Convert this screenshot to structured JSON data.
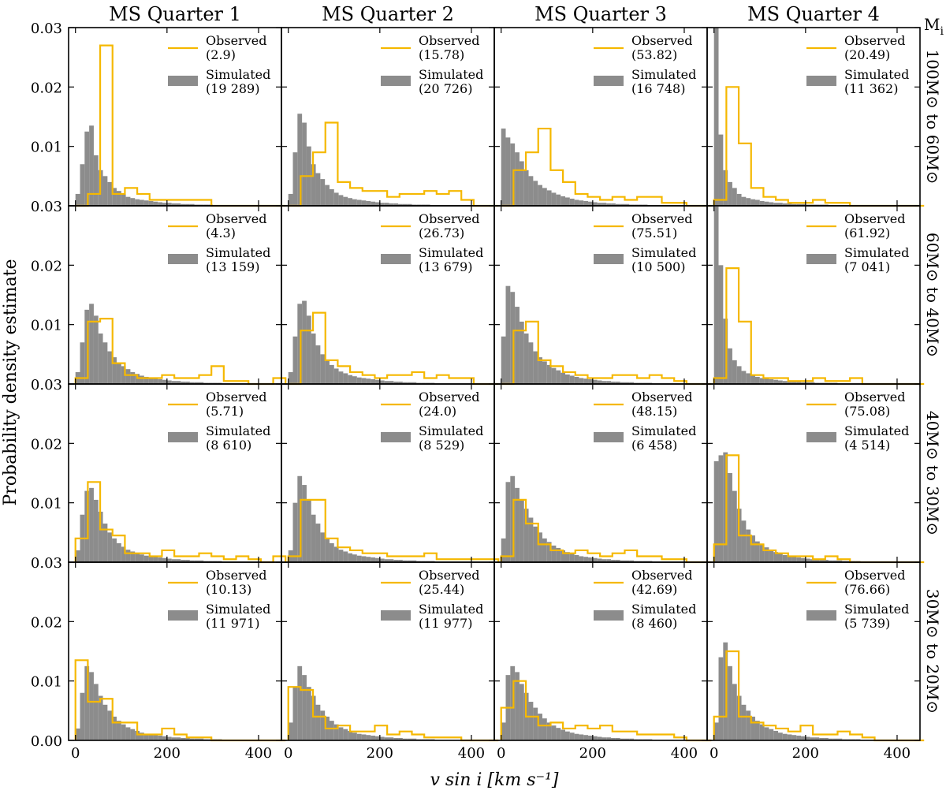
{
  "figure": {
    "ylabel": "Probability density estimate",
    "xlabel": "v sin i [km s⁻¹]",
    "mass_header": "M",
    "mass_header_sub": "i",
    "columns": [
      "MS Quarter 1",
      "MS Quarter 2",
      "MS Quarter 3",
      "MS Quarter 4"
    ],
    "rows": [
      "100M⊙ to 60M⊙",
      "60M⊙ to 40M⊙",
      "40M⊙ to 30M⊙",
      "30M⊙ to 20M⊙"
    ],
    "observed_label": "Observed",
    "simulated_label": "Simulated",
    "colors": {
      "observed": "#f5b800",
      "simulated": "#8c8c8c"
    }
  },
  "chart_data": [
    {
      "type": "bar",
      "row": 0,
      "col": 0,
      "observed_count": "(2.9)",
      "simulated_count": "(19 289)",
      "observed": [
        0,
        0.002,
        0.027,
        0.002,
        0.003,
        0.002,
        0.001,
        0.001,
        0.001,
        0.001,
        0.001,
        0,
        0,
        0,
        0,
        0,
        0
      ],
      "simulated": [
        0.002,
        0.007,
        0.0125,
        0.0135,
        0.0085,
        0.006,
        0.005,
        0.004,
        0.003,
        0.0025,
        0.002,
        0.0015,
        0.0013,
        0.0011,
        0.001,
        0.0009,
        0.0008,
        0.0007,
        0.0006,
        0.0005,
        0.0005,
        0.0004,
        0.0004,
        0.0003,
        0.0003,
        0.0003,
        0.0002,
        0.0002,
        0.0002,
        0.0002,
        0.0001,
        0.0001,
        0.0001,
        0.0001,
        0.0001,
        0.0001,
        0.0001,
        0.0001,
        0.0001,
        0.0001,
        0.0001,
        0.0001,
        0.0001,
        0.0001,
        0.0001
      ]
    },
    {
      "type": "bar",
      "row": 0,
      "col": 1,
      "observed_count": "(15.78)",
      "simulated_count": "(20 726)",
      "observed": [
        0,
        0.005,
        0.009,
        0.014,
        0.004,
        0.003,
        0.0025,
        0.0025,
        0.0015,
        0.002,
        0.002,
        0.0025,
        0.002,
        0.0025,
        0.001,
        0,
        0
      ],
      "simulated": [
        0.002,
        0.009,
        0.0155,
        0.014,
        0.01,
        0.007,
        0.0055,
        0.0045,
        0.0035,
        0.0028,
        0.0022,
        0.0018,
        0.0015,
        0.0013,
        0.0011,
        0.001,
        0.0009,
        0.0008,
        0.0007,
        0.0006,
        0.0005,
        0.0005,
        0.0004,
        0.0004,
        0.0003,
        0.0003,
        0.0003,
        0.0002,
        0.0002,
        0.0002,
        0.0002,
        0.0001,
        0.0001,
        0.0001,
        0.0001,
        0.0001,
        0.0001,
        0.0001,
        0.0001,
        0.0001,
        0.0001,
        0.0001,
        0.0001,
        0.0001,
        0.0001
      ]
    },
    {
      "type": "bar",
      "row": 0,
      "col": 2,
      "observed_count": "(53.82)",
      "simulated_count": "(16 748)",
      "observed": [
        0,
        0.006,
        0.009,
        0.013,
        0.006,
        0.004,
        0.002,
        0.0015,
        0.001,
        0.0015,
        0.001,
        0.0015,
        0.0015,
        0.0005,
        0.0005,
        0,
        0
      ],
      "simulated": [
        0.013,
        0.0115,
        0.0105,
        0.009,
        0.0075,
        0.006,
        0.005,
        0.0042,
        0.0035,
        0.003,
        0.0026,
        0.0022,
        0.0019,
        0.0016,
        0.0014,
        0.0012,
        0.001,
        0.0009,
        0.0008,
        0.0007,
        0.0006,
        0.0005,
        0.0005,
        0.0004,
        0.0004,
        0.0003,
        0.0003,
        0.0003,
        0.0002,
        0.0002,
        0.0002,
        0.0002,
        0.0001,
        0.0001,
        0.0001,
        0.0001,
        0.0001,
        0.0001,
        0.0001,
        0.0001,
        0.0001,
        0.0001,
        0.0001,
        0.0001,
        0.0001
      ]
    },
    {
      "type": "bar",
      "row": 0,
      "col": 3,
      "observed_count": "(20.49)",
      "simulated_count": "(11 362)",
      "observed": [
        0.001,
        0.02,
        0.0105,
        0.003,
        0.0015,
        0.001,
        0.0005,
        0.0005,
        0.001,
        0.0005,
        0.0005,
        0,
        0,
        0,
        0,
        0,
        0
      ],
      "simulated": [
        0.03,
        0.012,
        0.006,
        0.004,
        0.003,
        0.002,
        0.0015,
        0.0013,
        0.0011,
        0.001,
        0.0008,
        0.0007,
        0.0006,
        0.0005,
        0.0005,
        0.0004,
        0.0004,
        0.0003,
        0.0003,
        0.0003,
        0.0002,
        0.0002,
        0.0002,
        0.0002,
        0.0002,
        0.0001,
        0.0001,
        0.0001,
        0.0001,
        0.0001,
        0.0001,
        0.0001,
        0.0001,
        0.0001,
        0.0001,
        0.0001,
        0.0001,
        0.0001,
        0.0001,
        0.0001,
        0.0001,
        0.0001,
        0.0001,
        0.0001,
        0.0001
      ]
    },
    {
      "type": "bar",
      "row": 1,
      "col": 0,
      "observed_count": "(4.3)",
      "simulated_count": "(13 159)",
      "observed": [
        0.001,
        0.0105,
        0.011,
        0.0035,
        0.0015,
        0.001,
        0.001,
        0.0015,
        0.001,
        0.001,
        0.0015,
        0.003,
        0.0005,
        0.0005,
        0,
        0,
        0.001
      ],
      "simulated": [
        0.002,
        0.007,
        0.0125,
        0.0135,
        0.0115,
        0.0085,
        0.007,
        0.0055,
        0.0045,
        0.0035,
        0.003,
        0.0025,
        0.002,
        0.0017,
        0.0014,
        0.0012,
        0.001,
        0.0009,
        0.0008,
        0.0007,
        0.0006,
        0.0005,
        0.0005,
        0.0004,
        0.0004,
        0.0003,
        0.0003,
        0.0003,
        0.0002,
        0.0002,
        0.0002,
        0.0002,
        0.0001,
        0.0001,
        0.0001,
        0.0001,
        0.0001,
        0.0001,
        0.0001,
        0.0001,
        0.0001,
        0.0001,
        0.0001,
        0.0001,
        0.0001
      ]
    },
    {
      "type": "bar",
      "row": 1,
      "col": 1,
      "observed_count": "(26.73)",
      "simulated_count": "(13 679)",
      "observed": [
        0,
        0.009,
        0.012,
        0.004,
        0.003,
        0.002,
        0.0015,
        0.001,
        0.0015,
        0.0015,
        0.002,
        0.001,
        0.0015,
        0.001,
        0.001,
        0,
        0
      ],
      "simulated": [
        0.002,
        0.008,
        0.0135,
        0.014,
        0.0115,
        0.0085,
        0.0065,
        0.005,
        0.004,
        0.0032,
        0.0026,
        0.0021,
        0.0018,
        0.0015,
        0.0013,
        0.0011,
        0.001,
        0.0009,
        0.0008,
        0.0007,
        0.0006,
        0.0005,
        0.0005,
        0.0004,
        0.0004,
        0.0003,
        0.0003,
        0.0003,
        0.0002,
        0.0002,
        0.0002,
        0.0002,
        0.0001,
        0.0001,
        0.0001,
        0.0001,
        0.0001,
        0.0001,
        0.0001,
        0.0001,
        0.0001,
        0.0001,
        0.0001,
        0.0001,
        0.0001
      ]
    },
    {
      "type": "bar",
      "row": 1,
      "col": 2,
      "observed_count": "(75.51)",
      "simulated_count": "(10 500)",
      "observed": [
        0,
        0.009,
        0.0105,
        0.004,
        0.003,
        0.002,
        0.0015,
        0.001,
        0.001,
        0.0015,
        0.0015,
        0.001,
        0.0015,
        0.001,
        0.0005,
        0,
        0
      ],
      "simulated": [
        0.008,
        0.0165,
        0.0155,
        0.013,
        0.0105,
        0.0085,
        0.007,
        0.0055,
        0.0045,
        0.0038,
        0.0032,
        0.0027,
        0.0023,
        0.0019,
        0.0016,
        0.0014,
        0.0012,
        0.001,
        0.0009,
        0.0008,
        0.0007,
        0.0006,
        0.0005,
        0.0005,
        0.0004,
        0.0004,
        0.0003,
        0.0003,
        0.0003,
        0.0002,
        0.0002,
        0.0002,
        0.0002,
        0.0001,
        0.0001,
        0.0001,
        0.0001,
        0.0001,
        0.0001,
        0.0001,
        0.0001,
        0.0001,
        0.0001,
        0.0001,
        0.0001
      ]
    },
    {
      "type": "bar",
      "row": 1,
      "col": 3,
      "observed_count": "(61.92)",
      "simulated_count": "(7 041)",
      "observed": [
        0.001,
        0.0195,
        0.0105,
        0.0015,
        0.001,
        0.001,
        0.0005,
        0.0005,
        0.001,
        0.0005,
        0.0005,
        0.001,
        0,
        0,
        0,
        0,
        0
      ],
      "simulated": [
        0.03,
        0.02,
        0.011,
        0.006,
        0.004,
        0.003,
        0.0022,
        0.0018,
        0.0014,
        0.0012,
        0.001,
        0.0009,
        0.0008,
        0.0007,
        0.0006,
        0.0005,
        0.0005,
        0.0004,
        0.0004,
        0.0003,
        0.0003,
        0.0003,
        0.0002,
        0.0002,
        0.0002,
        0.0002,
        0.0002,
        0.0001,
        0.0001,
        0.0001,
        0.0001,
        0.0001,
        0.0001,
        0.0001,
        0.0001,
        0.0001,
        0.0001,
        0.0001,
        0.0001,
        0.0001,
        0.0001,
        0.0001,
        0.0001,
        0.0001,
        0.0001
      ]
    },
    {
      "type": "bar",
      "row": 2,
      "col": 0,
      "observed_count": "(5.71)",
      "simulated_count": "(8 610)",
      "observed": [
        0.004,
        0.0135,
        0.0055,
        0.0045,
        0.0015,
        0.0015,
        0.001,
        0.002,
        0.001,
        0.001,
        0.0015,
        0.001,
        0.0005,
        0.001,
        0.0005,
        0,
        0.001
      ],
      "simulated": [
        0.002,
        0.008,
        0.012,
        0.0125,
        0.0105,
        0.0085,
        0.0065,
        0.005,
        0.004,
        0.0032,
        0.0026,
        0.0021,
        0.0018,
        0.0015,
        0.0013,
        0.0011,
        0.001,
        0.0009,
        0.0008,
        0.0007,
        0.0006,
        0.0005,
        0.0005,
        0.0004,
        0.0004,
        0.0003,
        0.0003,
        0.0003,
        0.0002,
        0.0002,
        0.0002,
        0.0002,
        0.0001,
        0.0001,
        0.0001,
        0.0001,
        0.0001,
        0.0001,
        0.0001,
        0.0001,
        0.0001,
        0.0001,
        0.0001,
        0.0001,
        0.0001
      ]
    },
    {
      "type": "bar",
      "row": 2,
      "col": 1,
      "observed_count": "(24.0)",
      "simulated_count": "(8 529)",
      "observed": [
        0.001,
        0.0105,
        0.0105,
        0.004,
        0.0025,
        0.002,
        0.0015,
        0.0015,
        0.001,
        0.001,
        0.001,
        0.0015,
        0.0005,
        0.0005,
        0.0005,
        0.0005,
        0.0005
      ],
      "simulated": [
        0.002,
        0.01,
        0.0145,
        0.013,
        0.0105,
        0.008,
        0.0065,
        0.005,
        0.004,
        0.0032,
        0.0026,
        0.0021,
        0.0018,
        0.0015,
        0.0013,
        0.0011,
        0.001,
        0.0009,
        0.0008,
        0.0007,
        0.0006,
        0.0005,
        0.0005,
        0.0004,
        0.0004,
        0.0003,
        0.0003,
        0.0003,
        0.0002,
        0.0002,
        0.0002,
        0.0002,
        0.0001,
        0.0001,
        0.0001,
        0.0001,
        0.0001,
        0.0001,
        0.0001,
        0.0001,
        0.0001,
        0.0001,
        0.0001,
        0.0001,
        0.0001
      ]
    },
    {
      "type": "bar",
      "row": 2,
      "col": 2,
      "observed_count": "(48.15)",
      "simulated_count": "(6 458)",
      "observed": [
        0.001,
        0.0105,
        0.0065,
        0.003,
        0.002,
        0.0015,
        0.002,
        0.0015,
        0.001,
        0.0015,
        0.002,
        0.001,
        0.001,
        0.0005,
        0.0005,
        0,
        0
      ],
      "simulated": [
        0.004,
        0.0135,
        0.0145,
        0.0125,
        0.0105,
        0.009,
        0.0075,
        0.006,
        0.005,
        0.004,
        0.0034,
        0.0028,
        0.0024,
        0.002,
        0.0017,
        0.0014,
        0.0012,
        0.001,
        0.0009,
        0.0008,
        0.0007,
        0.0006,
        0.0005,
        0.0005,
        0.0004,
        0.0004,
        0.0003,
        0.0003,
        0.0003,
        0.0002,
        0.0002,
        0.0002,
        0.0002,
        0.0001,
        0.0001,
        0.0001,
        0.0001,
        0.0001,
        0.0001,
        0.0001,
        0.0001,
        0.0001,
        0.0001,
        0.0001,
        0.0001
      ]
    },
    {
      "type": "bar",
      "row": 2,
      "col": 3,
      "observed_count": "(75.08)",
      "simulated_count": "(4 514)",
      "observed": [
        0.003,
        0.018,
        0.0045,
        0.003,
        0.002,
        0.0015,
        0.001,
        0.001,
        0.0005,
        0.001,
        0.0005,
        0,
        0,
        0,
        0,
        0,
        0
      ],
      "simulated": [
        0.017,
        0.018,
        0.0185,
        0.015,
        0.012,
        0.009,
        0.007,
        0.0055,
        0.0045,
        0.0035,
        0.003,
        0.0025,
        0.002,
        0.0017,
        0.0014,
        0.0012,
        0.001,
        0.0009,
        0.0008,
        0.0007,
        0.0006,
        0.0005,
        0.0005,
        0.0004,
        0.0004,
        0.0003,
        0.0003,
        0.0003,
        0.0002,
        0.0002,
        0.0002,
        0.0002,
        0.0001,
        0.0001,
        0.0001,
        0.0001,
        0.0001,
        0.0001,
        0.0001,
        0.0001,
        0.0001,
        0.0001,
        0.0001,
        0.0001,
        0.0001
      ]
    },
    {
      "type": "bar",
      "row": 3,
      "col": 0,
      "observed_count": "(10.13)",
      "simulated_count": "(11 971)",
      "observed": [
        0.0135,
        0.0065,
        0.007,
        0.003,
        0.003,
        0.001,
        0.001,
        0.002,
        0.001,
        0.0005,
        0.0005,
        0,
        0,
        0,
        0,
        0,
        0
      ],
      "simulated": [
        0.002,
        0.008,
        0.0125,
        0.0115,
        0.0095,
        0.0075,
        0.006,
        0.005,
        0.004,
        0.0033,
        0.0027,
        0.0022,
        0.0019,
        0.0016,
        0.0013,
        0.0011,
        0.001,
        0.0009,
        0.0008,
        0.0007,
        0.0006,
        0.0005,
        0.0005,
        0.0004,
        0.0004,
        0.0003,
        0.0003,
        0.0003,
        0.0002,
        0.0002,
        0.0002,
        0.0002,
        0.0001,
        0.0001,
        0.0001,
        0.0001,
        0.0001,
        0.0001,
        0.0001,
        0.0001,
        0.0001,
        0.0001,
        0.0001,
        0.0001,
        0.0001
      ]
    },
    {
      "type": "bar",
      "row": 3,
      "col": 1,
      "observed_count": "(25.44)",
      "simulated_count": "(11 977)",
      "observed": [
        0.009,
        0.0085,
        0.004,
        0.002,
        0.0025,
        0.0015,
        0.0015,
        0.0025,
        0.001,
        0.0015,
        0.001,
        0.0005,
        0.0005,
        0.0005,
        0,
        0,
        0
      ],
      "simulated": [
        0.003,
        0.009,
        0.0125,
        0.011,
        0.009,
        0.0075,
        0.006,
        0.005,
        0.004,
        0.0033,
        0.0027,
        0.0022,
        0.0019,
        0.0016,
        0.0013,
        0.0011,
        0.001,
        0.0009,
        0.0008,
        0.0007,
        0.0006,
        0.0005,
        0.0005,
        0.0004,
        0.0004,
        0.0003,
        0.0003,
        0.0003,
        0.0002,
        0.0002,
        0.0002,
        0.0002,
        0.0001,
        0.0001,
        0.0001,
        0.0001,
        0.0001,
        0.0001,
        0.0001,
        0.0001,
        0.0001,
        0.0001,
        0.0001,
        0.0001,
        0.0001
      ]
    },
    {
      "type": "bar",
      "row": 3,
      "col": 2,
      "observed_count": "(42.69)",
      "simulated_count": "(8 460)",
      "observed": [
        0.0055,
        0.01,
        0.004,
        0.0025,
        0.003,
        0.002,
        0.0025,
        0.002,
        0.0025,
        0.0015,
        0.0015,
        0.001,
        0.001,
        0.001,
        0.0005,
        0,
        0
      ],
      "simulated": [
        0.003,
        0.011,
        0.0125,
        0.0115,
        0.0095,
        0.008,
        0.0065,
        0.0055,
        0.0045,
        0.0037,
        0.003,
        0.0025,
        0.0021,
        0.0018,
        0.0015,
        0.0013,
        0.0011,
        0.001,
        0.0009,
        0.0008,
        0.0007,
        0.0006,
        0.0005,
        0.0005,
        0.0004,
        0.0004,
        0.0003,
        0.0003,
        0.0003,
        0.0002,
        0.0002,
        0.0002,
        0.0002,
        0.0001,
        0.0001,
        0.0001,
        0.0001,
        0.0001,
        0.0001,
        0.0001,
        0.0001,
        0.0001,
        0.0001,
        0.0001,
        0.0001
      ]
    },
    {
      "type": "bar",
      "row": 3,
      "col": 3,
      "observed_count": "(76.66)",
      "simulated_count": "(5 739)",
      "observed": [
        0.004,
        0.015,
        0.004,
        0.003,
        0.0025,
        0.002,
        0.0015,
        0.0025,
        0.001,
        0.001,
        0.0015,
        0.001,
        0.0005,
        0,
        0,
        0,
        0
      ],
      "simulated": [
        0.003,
        0.014,
        0.0165,
        0.0125,
        0.0095,
        0.0075,
        0.006,
        0.005,
        0.004,
        0.0033,
        0.0027,
        0.0022,
        0.0019,
        0.0016,
        0.0013,
        0.0011,
        0.001,
        0.0009,
        0.0008,
        0.0007,
        0.0006,
        0.0005,
        0.0005,
        0.0004,
        0.0004,
        0.0003,
        0.0003,
        0.0003,
        0.0002,
        0.0002,
        0.0002,
        0.0002,
        0.0001,
        0.0001,
        0.0001,
        0.0001,
        0.0001,
        0.0001,
        0.0001,
        0.0001,
        0.0001,
        0.0001,
        0.0001,
        0.0001,
        0.0001
      ]
    }
  ],
  "axes": {
    "x_ticks": [
      "0",
      "200",
      "400"
    ],
    "x_tick_values": [
      0,
      200,
      400
    ],
    "y_ticks_top": [
      "0.03",
      "0.02",
      "0.01"
    ],
    "y_ticks_bottom": [
      "0.03",
      "0.02",
      "0.01",
      "0.00"
    ],
    "y_tick_values": [
      0.03,
      0.02,
      0.01,
      0.0
    ],
    "xlim": [
      -15,
      450
    ],
    "ylim": [
      0,
      0.03
    ],
    "sim_bin_width": 10,
    "obs_bin_width": 27
  }
}
